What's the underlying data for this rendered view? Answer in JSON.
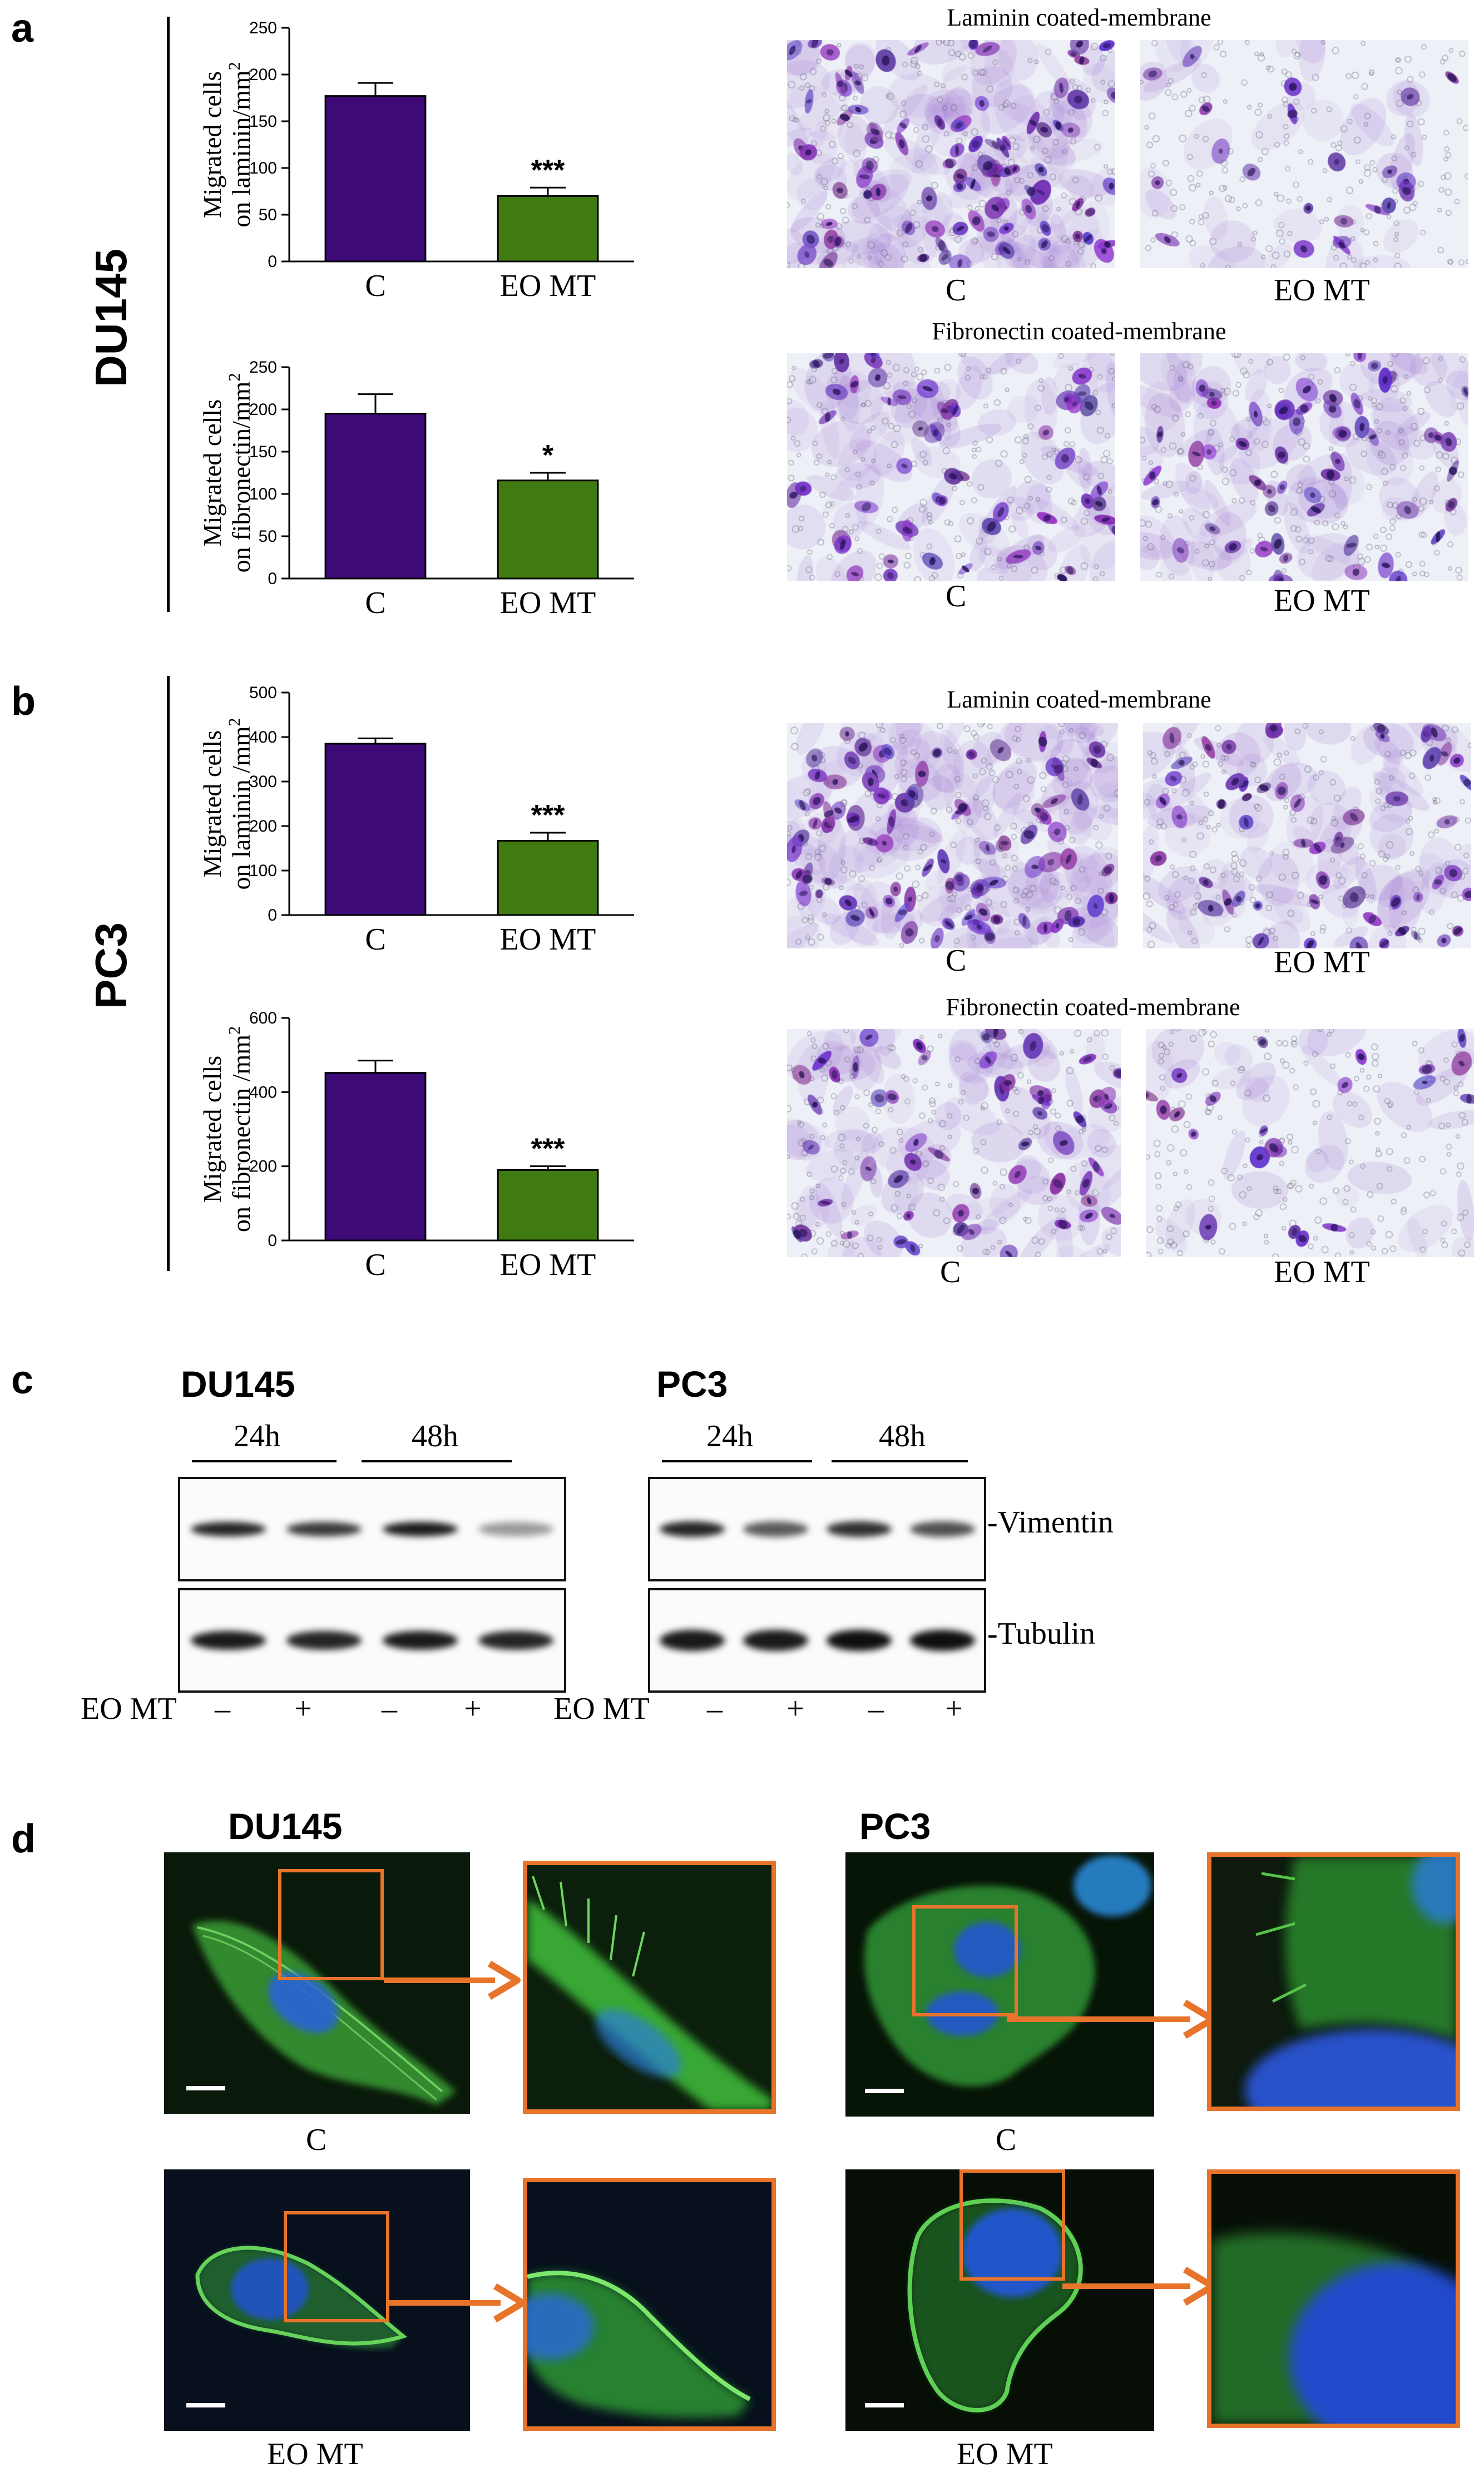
{
  "panels": {
    "a": {
      "letter": "a",
      "row_label": "DU145",
      "laminin_title": "Laminin coated-membrane",
      "fibronectin_title": "Fibronectin coated-membrane",
      "micro_labels": [
        "C",
        "EO MT"
      ]
    },
    "b": {
      "letter": "b",
      "row_label": "PC3",
      "laminin_title": "Laminin coated-membrane",
      "fibronectin_title": "Fibronectin coated-membrane",
      "micro_labels": [
        "C",
        "EO MT"
      ]
    },
    "c": {
      "letter": "c",
      "left_title": "DU145",
      "right_title": "PC3",
      "time_labels": [
        "24h",
        "48h"
      ],
      "band_labels": [
        "-Vimentin",
        "-Tubulin"
      ],
      "treatment_label": "EO MT",
      "signs": [
        "–",
        "+",
        "–",
        "+"
      ],
      "band_intensity": {
        "du145_vimentin": [
          0.9,
          0.8,
          0.95,
          0.35
        ],
        "du145_tubulin": [
          0.95,
          0.9,
          0.95,
          0.9
        ],
        "pc3_vimentin": [
          0.9,
          0.65,
          0.85,
          0.7
        ],
        "pc3_tubulin": [
          0.95,
          0.95,
          1.0,
          1.0
        ]
      }
    },
    "d": {
      "letter": "d",
      "left_title": "DU145",
      "right_title": "PC3",
      "labels": [
        "C",
        "EO MT"
      ]
    }
  },
  "chart_data": [
    {
      "id": "du145-laminin",
      "type": "bar",
      "categories": [
        "C",
        "EO MT"
      ],
      "values": [
        177,
        70
      ],
      "errors": [
        14,
        9
      ],
      "significance": [
        "",
        "***"
      ],
      "ylabel_lines": [
        "Migrated cells",
        "on laminin/mm"
      ],
      "ylabel_sup": "2",
      "yticks": [
        0,
        50,
        100,
        150,
        200,
        250
      ],
      "ylim": [
        0,
        250
      ],
      "colors": [
        "#3d0a78",
        "#3f7a12"
      ]
    },
    {
      "id": "du145-fibronectin",
      "type": "bar",
      "categories": [
        "C",
        "EO MT"
      ],
      "values": [
        195,
        116
      ],
      "errors": [
        23,
        9
      ],
      "significance": [
        "",
        "*"
      ],
      "ylabel_lines": [
        "Migrated cells",
        "on fibronectin/mm"
      ],
      "ylabel_sup": "2",
      "yticks": [
        0,
        50,
        100,
        150,
        200,
        250
      ],
      "ylim": [
        0,
        250
      ],
      "colors": [
        "#3d0a78",
        "#3f7a12"
      ]
    },
    {
      "id": "pc3-laminin",
      "type": "bar",
      "categories": [
        "C",
        "EO MT"
      ],
      "values": [
        385,
        167
      ],
      "errors": [
        12,
        18
      ],
      "significance": [
        "",
        "***"
      ],
      "ylabel_lines": [
        "Migrated cells",
        "on laminin /mm"
      ],
      "ylabel_sup": "2",
      "yticks": [
        0,
        100,
        200,
        300,
        400,
        500
      ],
      "ylim": [
        0,
        500
      ],
      "colors": [
        "#3d0a78",
        "#3f7a12"
      ]
    },
    {
      "id": "pc3-fibronectin",
      "type": "bar",
      "categories": [
        "C",
        "EO MT"
      ],
      "values": [
        452,
        190
      ],
      "errors": [
        33,
        10
      ],
      "significance": [
        "",
        "***"
      ],
      "ylabel_lines": [
        "Migrated cells",
        "on fibronectin /mm"
      ],
      "ylabel_sup": "2",
      "yticks": [
        0,
        200,
        400,
        600
      ],
      "ylim": [
        0,
        600
      ],
      "colors": [
        "#3d0a78",
        "#3f7a12"
      ]
    }
  ]
}
